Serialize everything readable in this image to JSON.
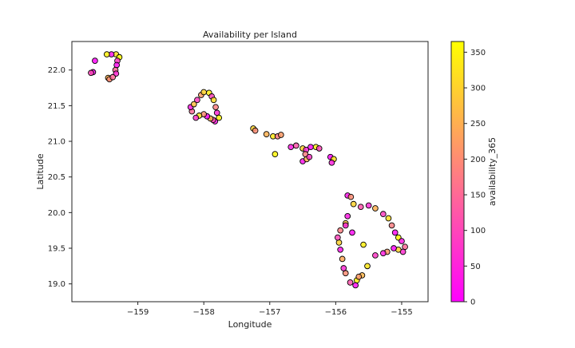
{
  "chart_data": {
    "type": "scatter",
    "title": "Availability per Island",
    "xlabel": "Longitude",
    "ylabel": "Latitude",
    "xlim": [
      -160.0,
      -154.6
    ],
    "ylim": [
      18.75,
      22.4
    ],
    "xticks": [
      -159,
      -158,
      -157,
      -156,
      -155
    ],
    "xtick_labels": [
      "−159",
      "−158",
      "−157",
      "−156",
      "−155"
    ],
    "yticks": [
      19.0,
      19.5,
      20.0,
      20.5,
      21.0,
      21.5,
      22.0
    ],
    "ytick_labels": [
      "19.0",
      "19.5",
      "20.0",
      "20.5",
      "21.0",
      "21.5",
      "22.0"
    ],
    "grid": false,
    "colorbar": {
      "label": "availability_365",
      "range": [
        0,
        365
      ],
      "ticks": [
        0,
        50,
        100,
        150,
        200,
        250,
        300,
        350
      ],
      "colormap": "spring",
      "color_low": "#ff00ff",
      "color_high": "#ffff00"
    },
    "marker_edge_color": "#000000",
    "series": [
      {
        "points": [
          {
            "x": -159.33,
            "y": 22.22,
            "v": 320
          },
          {
            "x": -159.4,
            "y": 22.22,
            "v": 30
          },
          {
            "x": -159.47,
            "y": 22.22,
            "v": 340
          },
          {
            "x": -159.28,
            "y": 22.18,
            "v": 360
          },
          {
            "x": -159.31,
            "y": 22.13,
            "v": 80
          },
          {
            "x": -159.32,
            "y": 22.07,
            "v": 20
          },
          {
            "x": -159.34,
            "y": 22.0,
            "v": 150
          },
          {
            "x": -159.33,
            "y": 21.95,
            "v": 60
          },
          {
            "x": -159.68,
            "y": 21.97,
            "v": 20
          },
          {
            "x": -159.71,
            "y": 21.96,
            "v": 100
          },
          {
            "x": -159.65,
            "y": 22.13,
            "v": 10
          },
          {
            "x": -159.45,
            "y": 21.89,
            "v": 260
          },
          {
            "x": -159.43,
            "y": 21.87,
            "v": 200
          },
          {
            "x": -159.38,
            "y": 21.9,
            "v": 150
          },
          {
            "x": -158.1,
            "y": 21.58,
            "v": 90
          },
          {
            "x": -158.04,
            "y": 21.65,
            "v": 220
          },
          {
            "x": -158.0,
            "y": 21.69,
            "v": 300
          },
          {
            "x": -157.92,
            "y": 21.68,
            "v": 340
          },
          {
            "x": -157.88,
            "y": 21.63,
            "v": 100
          },
          {
            "x": -157.85,
            "y": 21.58,
            "v": 310
          },
          {
            "x": -157.82,
            "y": 21.48,
            "v": 180
          },
          {
            "x": -157.8,
            "y": 21.4,
            "v": 60
          },
          {
            "x": -157.77,
            "y": 21.33,
            "v": 350
          },
          {
            "x": -157.83,
            "y": 21.28,
            "v": 30
          },
          {
            "x": -157.86,
            "y": 21.3,
            "v": 120
          },
          {
            "x": -157.9,
            "y": 21.32,
            "v": 250
          },
          {
            "x": -157.95,
            "y": 21.35,
            "v": 10
          },
          {
            "x": -158.0,
            "y": 21.38,
            "v": 200
          },
          {
            "x": -158.07,
            "y": 21.36,
            "v": 320
          },
          {
            "x": -158.12,
            "y": 21.33,
            "v": 80
          },
          {
            "x": -158.18,
            "y": 21.42,
            "v": 150
          },
          {
            "x": -158.2,
            "y": 21.48,
            "v": 40
          },
          {
            "x": -158.15,
            "y": 21.52,
            "v": 270
          },
          {
            "x": -157.25,
            "y": 21.18,
            "v": 300
          },
          {
            "x": -157.22,
            "y": 21.15,
            "v": 200
          },
          {
            "x": -157.05,
            "y": 21.1,
            "v": 250
          },
          {
            "x": -156.95,
            "y": 21.07,
            "v": 330
          },
          {
            "x": -156.88,
            "y": 21.07,
            "v": 180
          },
          {
            "x": -156.83,
            "y": 21.09,
            "v": 220
          },
          {
            "x": -156.92,
            "y": 20.82,
            "v": 350
          },
          {
            "x": -156.68,
            "y": 20.92,
            "v": 40
          },
          {
            "x": -156.6,
            "y": 20.94,
            "v": 120
          },
          {
            "x": -156.5,
            "y": 20.9,
            "v": 300
          },
          {
            "x": -156.45,
            "y": 20.88,
            "v": 60
          },
          {
            "x": -156.38,
            "y": 20.92,
            "v": 20
          },
          {
            "x": -156.3,
            "y": 20.92,
            "v": 340
          },
          {
            "x": -156.25,
            "y": 20.9,
            "v": 100
          },
          {
            "x": -156.5,
            "y": 20.72,
            "v": 30
          },
          {
            "x": -156.44,
            "y": 20.75,
            "v": 250
          },
          {
            "x": -156.46,
            "y": 20.82,
            "v": 180
          },
          {
            "x": -156.4,
            "y": 20.78,
            "v": 80
          },
          {
            "x": -156.08,
            "y": 20.78,
            "v": 10
          },
          {
            "x": -156.03,
            "y": 20.75,
            "v": 320
          },
          {
            "x": -156.06,
            "y": 20.7,
            "v": 50
          },
          {
            "x": -155.82,
            "y": 20.24,
            "v": 30
          },
          {
            "x": -155.77,
            "y": 20.22,
            "v": 200
          },
          {
            "x": -155.73,
            "y": 20.12,
            "v": 300
          },
          {
            "x": -155.62,
            "y": 20.08,
            "v": 120
          },
          {
            "x": -155.5,
            "y": 20.1,
            "v": 60
          },
          {
            "x": -155.4,
            "y": 20.06,
            "v": 250
          },
          {
            "x": -155.28,
            "y": 19.98,
            "v": 90
          },
          {
            "x": -155.2,
            "y": 19.92,
            "v": 320
          },
          {
            "x": -155.15,
            "y": 19.82,
            "v": 180
          },
          {
            "x": -155.1,
            "y": 19.72,
            "v": 20
          },
          {
            "x": -155.05,
            "y": 19.65,
            "v": 360
          },
          {
            "x": -155.0,
            "y": 19.6,
            "v": 40
          },
          {
            "x": -154.95,
            "y": 19.52,
            "v": 150
          },
          {
            "x": -154.98,
            "y": 19.45,
            "v": 70
          },
          {
            "x": -155.05,
            "y": 19.48,
            "v": 300
          },
          {
            "x": -155.12,
            "y": 19.5,
            "v": 10
          },
          {
            "x": -155.22,
            "y": 19.45,
            "v": 220
          },
          {
            "x": -155.28,
            "y": 19.43,
            "v": 50
          },
          {
            "x": -155.4,
            "y": 19.4,
            "v": 80
          },
          {
            "x": -155.52,
            "y": 19.25,
            "v": 330
          },
          {
            "x": -155.6,
            "y": 19.12,
            "v": 260
          },
          {
            "x": -155.68,
            "y": 19.05,
            "v": 350
          },
          {
            "x": -155.7,
            "y": 18.98,
            "v": 20
          },
          {
            "x": -155.78,
            "y": 19.02,
            "v": 120
          },
          {
            "x": -155.85,
            "y": 19.15,
            "v": 200
          },
          {
            "x": -155.88,
            "y": 19.22,
            "v": 60
          },
          {
            "x": -155.9,
            "y": 19.35,
            "v": 240
          },
          {
            "x": -155.93,
            "y": 19.48,
            "v": 30
          },
          {
            "x": -155.95,
            "y": 19.58,
            "v": 300
          },
          {
            "x": -155.97,
            "y": 19.65,
            "v": 100
          },
          {
            "x": -155.93,
            "y": 19.75,
            "v": 180
          },
          {
            "x": -155.85,
            "y": 19.85,
            "v": 280
          },
          {
            "x": -155.82,
            "y": 19.95,
            "v": 40
          },
          {
            "x": -155.75,
            "y": 19.72,
            "v": 20
          },
          {
            "x": -155.58,
            "y": 19.55,
            "v": 340
          },
          {
            "x": -155.85,
            "y": 19.82,
            "v": 60
          },
          {
            "x": -155.65,
            "y": 19.1,
            "v": 220
          }
        ]
      }
    ]
  }
}
